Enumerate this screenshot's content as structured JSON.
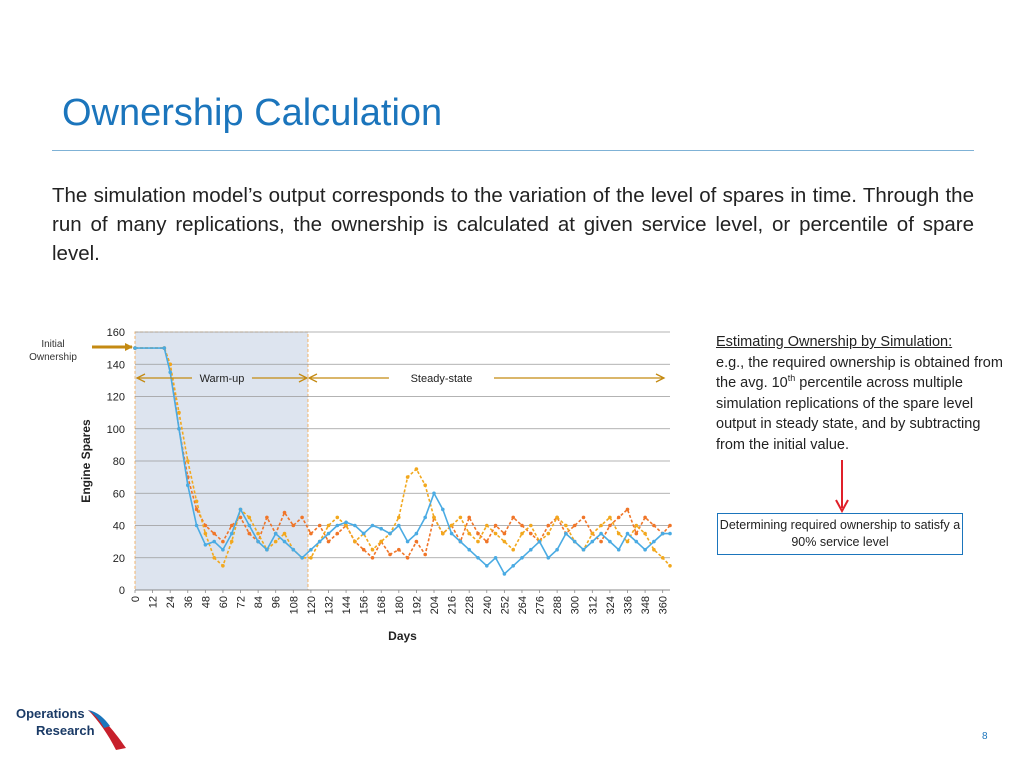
{
  "slide": {
    "title": "Ownership Calculation",
    "body": "The simulation model’s output corresponds to the variation of the level of spares in time. Through the run of many replications, the ownership is calculated at given service level, or percentile of spare level.",
    "initial_ownership_label": "Initial Ownership",
    "note_head": "Estimating Ownership by Simulation:",
    "note_pre": "e.g., the required ownership is obtained from the avg. 10",
    "note_sup": "th",
    "note_post": " percentile across multiple simulation replications of the spare level output in steady state, and by subtracting from the initial value.",
    "callout": "Determining required ownership to satisfy a 90% service level",
    "logo_line1": "Operations",
    "logo_line2": "Research",
    "page_number": "8"
  },
  "colors": {
    "accent": "#1b75bc",
    "series_orange": "#f07528",
    "series_yellow": "#f2a81d",
    "series_blue": "#4aabe3",
    "warmup_shade": "#dde4ef",
    "arrow_gold": "#c48a12",
    "red_arrow": "#e0202a"
  },
  "chart_data": {
    "type": "line",
    "xlabel": "Days",
    "ylabel": "Engine Spares",
    "ylim": [
      0,
      160
    ],
    "yticks": [
      0,
      20,
      40,
      60,
      80,
      100,
      120,
      140,
      160
    ],
    "xlim": [
      0,
      365
    ],
    "xticks": [
      0,
      12,
      24,
      36,
      48,
      60,
      72,
      84,
      96,
      108,
      120,
      132,
      144,
      156,
      168,
      180,
      192,
      204,
      216,
      228,
      240,
      252,
      264,
      276,
      288,
      300,
      312,
      324,
      336,
      348,
      360
    ],
    "grid": "horizontal",
    "initial_value": 150,
    "warmup_end": 118,
    "annotations": {
      "warmup": "Warm-up",
      "steady": "Steady-state"
    },
    "series": [
      {
        "color": "orange",
        "x": [
          0,
          20,
          24,
          30,
          36,
          42,
          48,
          54,
          60,
          66,
          72,
          78,
          84,
          90,
          96,
          102,
          108,
          114,
          120,
          126,
          132,
          138,
          144,
          150,
          156,
          162,
          168,
          174,
          180,
          186,
          192,
          198,
          204,
          210,
          216,
          222,
          228,
          234,
          240,
          246,
          252,
          258,
          264,
          270,
          276,
          282,
          288,
          294,
          300,
          306,
          312,
          318,
          324,
          330,
          336,
          342,
          348,
          354,
          360,
          365
        ],
        "y": [
          150,
          150,
          140,
          100,
          70,
          50,
          40,
          35,
          30,
          40,
          45,
          35,
          30,
          45,
          35,
          48,
          40,
          45,
          35,
          40,
          30,
          35,
          40,
          30,
          25,
          20,
          30,
          22,
          25,
          20,
          30,
          22,
          45,
          35,
          40,
          30,
          45,
          35,
          30,
          40,
          35,
          45,
          40,
          35,
          30,
          40,
          45,
          35,
          40,
          45,
          35,
          30,
          40,
          45,
          50,
          35,
          45,
          40,
          35,
          40
        ]
      },
      {
        "color": "yellow",
        "x": [
          0,
          20,
          24,
          30,
          36,
          42,
          48,
          54,
          60,
          66,
          72,
          78,
          84,
          90,
          96,
          102,
          108,
          114,
          120,
          126,
          132,
          138,
          144,
          150,
          156,
          162,
          168,
          174,
          180,
          186,
          192,
          198,
          204,
          210,
          216,
          222,
          228,
          234,
          240,
          246,
          252,
          258,
          264,
          270,
          276,
          282,
          288,
          294,
          300,
          306,
          312,
          318,
          324,
          330,
          336,
          342,
          348,
          354,
          360,
          365
        ],
        "y": [
          150,
          150,
          140,
          110,
          80,
          55,
          35,
          20,
          15,
          30,
          50,
          45,
          35,
          25,
          30,
          35,
          25,
          20,
          20,
          30,
          40,
          45,
          40,
          30,
          35,
          25,
          30,
          35,
          45,
          70,
          75,
          65,
          45,
          35,
          40,
          45,
          35,
          30,
          40,
          35,
          30,
          25,
          35,
          40,
          30,
          35,
          45,
          40,
          30,
          25,
          35,
          40,
          45,
          35,
          30,
          40,
          35,
          25,
          20,
          15
        ]
      },
      {
        "color": "blue",
        "x": [
          0,
          20,
          24,
          30,
          36,
          42,
          48,
          54,
          60,
          66,
          72,
          78,
          84,
          90,
          96,
          102,
          108,
          114,
          120,
          126,
          132,
          138,
          144,
          150,
          156,
          162,
          168,
          174,
          180,
          186,
          192,
          198,
          204,
          210,
          216,
          222,
          228,
          234,
          240,
          246,
          252,
          258,
          264,
          270,
          276,
          282,
          288,
          294,
          300,
          306,
          312,
          318,
          324,
          330,
          336,
          342,
          348,
          354,
          360,
          365
        ],
        "y": [
          150,
          150,
          135,
          100,
          65,
          40,
          28,
          30,
          25,
          35,
          50,
          40,
          30,
          25,
          35,
          30,
          25,
          20,
          25,
          30,
          35,
          40,
          42,
          40,
          35,
          40,
          38,
          35,
          40,
          30,
          35,
          45,
          60,
          50,
          35,
          30,
          25,
          20,
          15,
          20,
          10,
          15,
          20,
          25,
          30,
          20,
          25,
          35,
          30,
          25,
          30,
          35,
          30,
          25,
          35,
          30,
          25,
          30,
          35,
          35
        ]
      }
    ]
  }
}
